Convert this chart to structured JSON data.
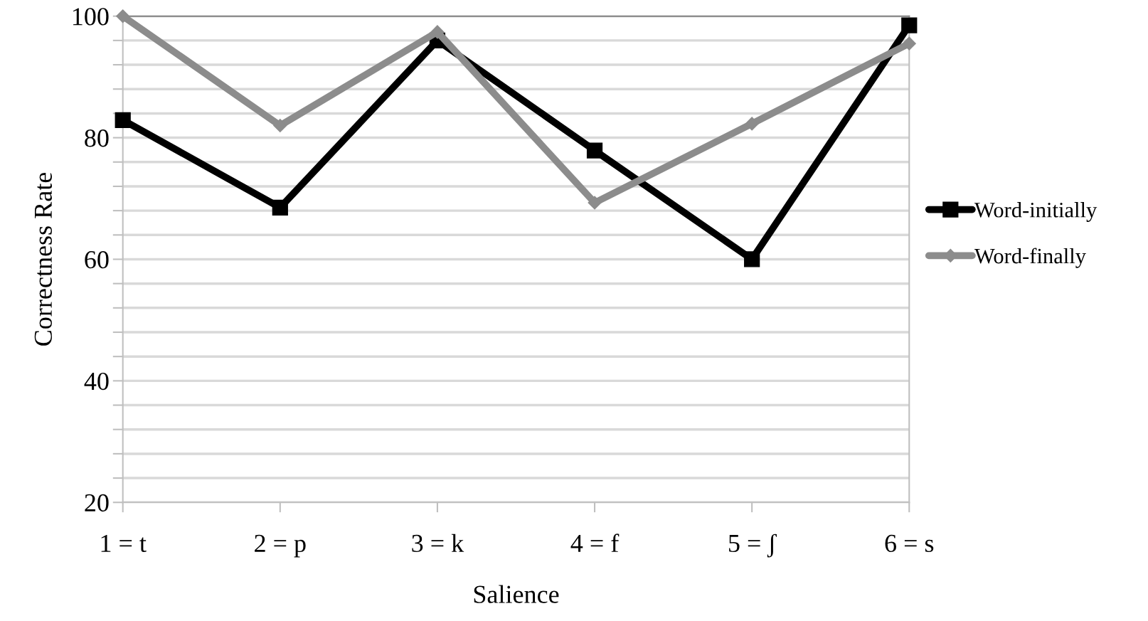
{
  "chart_data": {
    "type": "line",
    "xlabel": "Salience",
    "ylabel": "Correctness Rate",
    "categories": [
      "1 = t",
      "2 = p",
      "3 = k",
      "4 = f",
      "5 = ʃ",
      "6 = s"
    ],
    "series": [
      {
        "name": "Word-initially",
        "color": "#000000",
        "marker": "square",
        "values": [
          82.9,
          68.5,
          96,
          77.9,
          60,
          98.5
        ]
      },
      {
        "name": "Word-finally",
        "color": "#8c8c8c",
        "marker": "diamond",
        "values": [
          100,
          82,
          97.4,
          69.3,
          82.3,
          95.5
        ]
      }
    ],
    "ylim": [
      20,
      100
    ],
    "yticks": [
      20,
      {
        "value": 24,
        "label": null
      },
      {
        "value": 28,
        "label": null
      },
      {
        "value": 32,
        "label": null
      },
      {
        "value": 36,
        "label": null
      },
      40,
      {
        "value": 44,
        "label": null
      },
      {
        "value": 48,
        "label": null
      },
      {
        "value": 52,
        "label": null
      },
      {
        "value": 56,
        "label": null
      },
      60,
      {
        "value": 64,
        "label": null
      },
      {
        "value": 68,
        "label": null
      },
      {
        "value": 72,
        "label": null
      },
      {
        "value": 76,
        "label": null
      },
      80,
      {
        "value": 84,
        "label": null
      },
      {
        "value": 88,
        "label": null
      },
      {
        "value": 92,
        "label": null
      },
      {
        "value": 96,
        "label": null
      },
      100
    ],
    "grid": "y",
    "legend": "right",
    "line_style": "solid"
  }
}
